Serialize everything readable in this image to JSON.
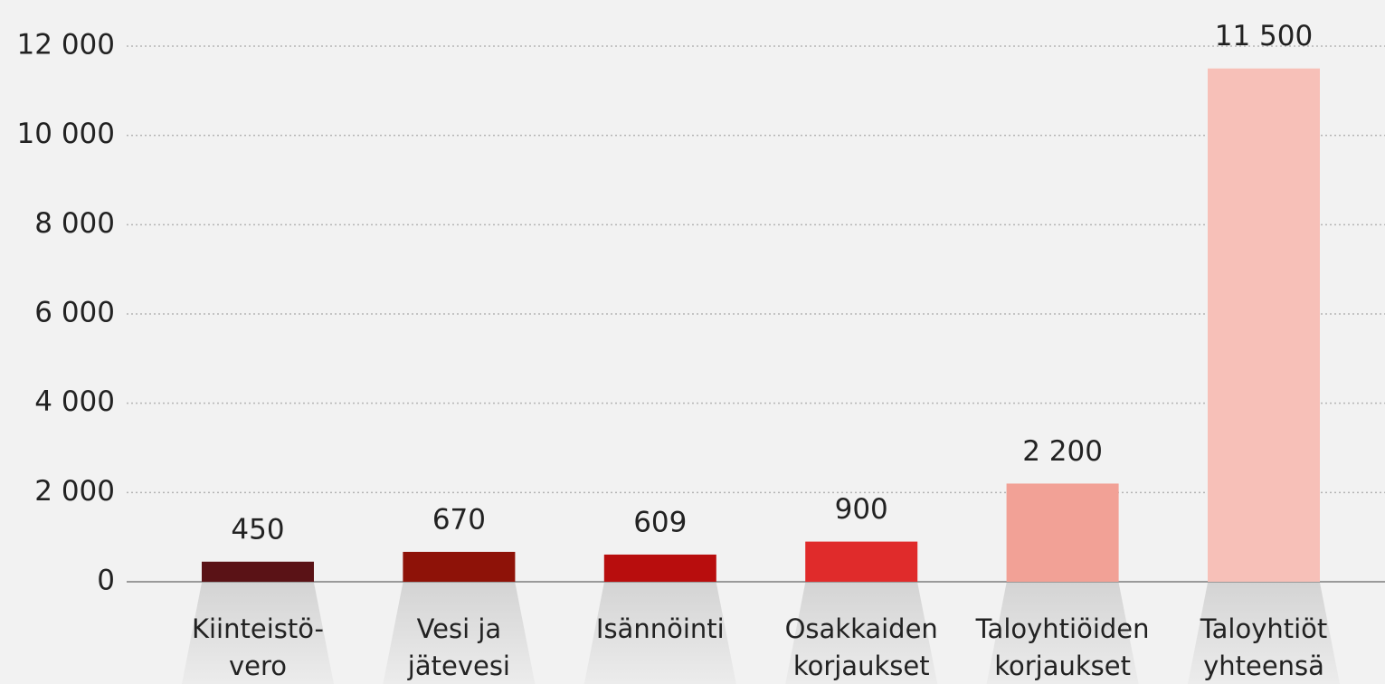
{
  "chart_data": {
    "type": "bar",
    "categories": [
      [
        "Kiinteistö-",
        "vero"
      ],
      [
        "Vesi ja",
        "jätevesi"
      ],
      [
        "Isännöinti"
      ],
      [
        "Osakkaiden",
        "korjaukset"
      ],
      [
        "Taloyhtiöiden",
        "korjaukset"
      ],
      [
        "Taloyhtiöt",
        "yhteensä"
      ]
    ],
    "values": [
      450,
      670,
      609,
      900,
      2200,
      11500
    ],
    "value_labels": [
      "450",
      "670",
      "609",
      "900",
      "2 200",
      "11 500"
    ],
    "colors": [
      "#5a1216",
      "#8e1208",
      "#b80d0d",
      "#e02b2b",
      "#f2a196",
      "#f7c0b8"
    ],
    "ylim": [
      0,
      12000
    ],
    "yticks": [
      0,
      {
        "value": 2000,
        "label": "2 000"
      },
      {
        "value": 4000,
        "label": "4 000"
      },
      {
        "value": 6000,
        "label": "6 000"
      },
      {
        "value": 8000,
        "label": "8 000"
      },
      {
        "value": 10000,
        "label": "10 000"
      },
      {
        "value": 12000,
        "label": "12 000"
      }
    ],
    "grid": true
  }
}
